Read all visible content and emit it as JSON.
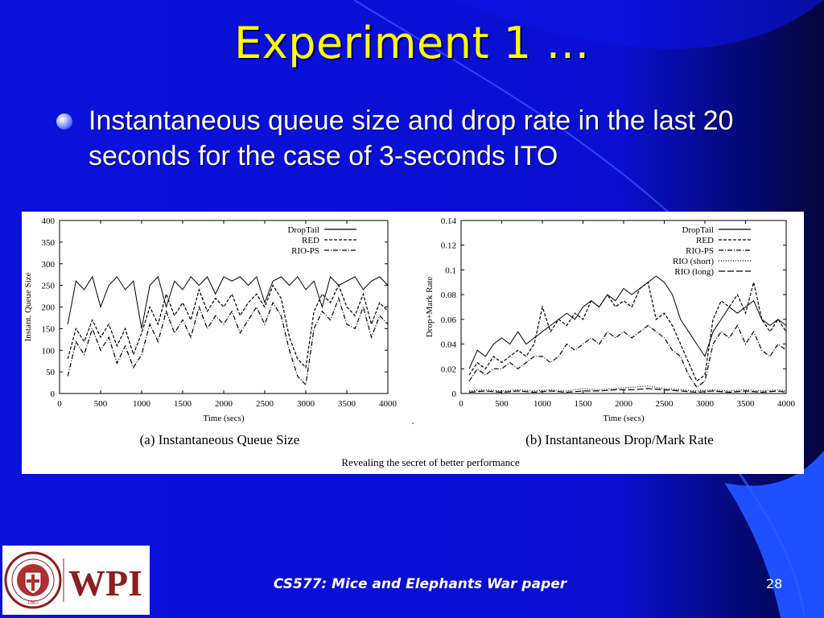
{
  "slide": {
    "title": "Experiment 1 …",
    "bullet": "Instantaneous queue size and drop rate in the last 20 seconds for the case of 3-seconds ITO",
    "footer": "CS577:  Mice and Elephants War paper",
    "page_number": "28",
    "colors": {
      "background": "#0a0fd8",
      "title": "#ffff00",
      "text": "#ffffff",
      "accent": "#1e50ff"
    },
    "logo": {
      "text": "WPI",
      "seal_text": "WORCESTER POLYTECHNIC INSTITUTE",
      "seal_year": "1865",
      "text_color": "#8b1f1f"
    }
  },
  "figure": {
    "caption": "Revealing the secret of better performance",
    "dot": "."
  },
  "chart_data": [
    {
      "type": "line",
      "subcaption": "(a) Instantaneous Queue Size",
      "xlabel": "Time (secs)",
      "ylabel": "Instant. Queue Size",
      "xlim": [
        0,
        4000
      ],
      "ylim": [
        0,
        400
      ],
      "xticks": [
        0,
        500,
        1000,
        1500,
        2000,
        2500,
        3000,
        3500,
        4000
      ],
      "yticks": [
        0,
        50,
        100,
        150,
        200,
        250,
        300,
        350,
        400
      ],
      "legend_position": "top-right",
      "grid": false,
      "series": [
        {
          "name": "DropTail",
          "style": "solid",
          "x": [
            100,
            200,
            300,
            400,
            500,
            600,
            700,
            800,
            900,
            1000,
            1100,
            1200,
            1300,
            1400,
            1500,
            1600,
            1700,
            1800,
            1900,
            2000,
            2100,
            2200,
            2300,
            2400,
            2500,
            2600,
            2700,
            2800,
            2900,
            3000,
            3100,
            3200,
            3300,
            3400,
            3500,
            3600,
            3700,
            3800,
            3900,
            4000
          ],
          "values": [
            160,
            260,
            240,
            270,
            200,
            250,
            270,
            240,
            260,
            150,
            250,
            270,
            200,
            260,
            240,
            270,
            250,
            270,
            230,
            270,
            260,
            270,
            250,
            270,
            210,
            260,
            270,
            250,
            270,
            240,
            260,
            200,
            270,
            250,
            260,
            270,
            240,
            260,
            270,
            250
          ]
        },
        {
          "name": "RED",
          "style": "dashed",
          "x": [
            100,
            200,
            300,
            400,
            500,
            600,
            700,
            800,
            900,
            1000,
            1100,
            1200,
            1300,
            1400,
            1500,
            1600,
            1700,
            1800,
            1900,
            2000,
            2100,
            2200,
            2300,
            2400,
            2500,
            2600,
            2700,
            2800,
            2900,
            3000,
            3100,
            3200,
            3300,
            3400,
            3500,
            3600,
            3700,
            3800,
            3900,
            4000
          ],
          "values": [
            80,
            150,
            120,
            170,
            130,
            160,
            110,
            150,
            90,
            140,
            200,
            160,
            230,
            180,
            210,
            170,
            240,
            190,
            220,
            200,
            230,
            180,
            210,
            230,
            200,
            250,
            220,
            130,
            80,
            60,
            190,
            230,
            210,
            250,
            200,
            180,
            230,
            160,
            210,
            190
          ]
        },
        {
          "name": "RIO-PS",
          "style": "dash-dot",
          "x": [
            100,
            200,
            300,
            400,
            500,
            600,
            700,
            800,
            900,
            1000,
            1100,
            1200,
            1300,
            1400,
            1500,
            1600,
            1700,
            1800,
            1900,
            2000,
            2100,
            2200,
            2300,
            2400,
            2500,
            2600,
            2700,
            2800,
            2900,
            3000,
            3100,
            3200,
            3300,
            3400,
            3500,
            3600,
            3700,
            3800,
            3900,
            4000
          ],
          "values": [
            40,
            120,
            90,
            150,
            100,
            130,
            70,
            110,
            60,
            90,
            160,
            120,
            190,
            140,
            170,
            130,
            200,
            150,
            180,
            160,
            190,
            140,
            170,
            200,
            160,
            210,
            180,
            100,
            40,
            20,
            150,
            190,
            170,
            220,
            160,
            150,
            200,
            130,
            180,
            160
          ]
        }
      ]
    },
    {
      "type": "line",
      "subcaption": "(b) Instantaneous Drop/Mark Rate",
      "xlabel": "Time (secs)",
      "ylabel": "Drop+Mark Rate",
      "xlim": [
        0,
        4000
      ],
      "ylim": [
        0,
        0.14
      ],
      "xticks": [
        0,
        500,
        1000,
        1500,
        2000,
        2500,
        3000,
        3500,
        4000
      ],
      "yticks": [
        0,
        0.02,
        0.04,
        0.06,
        0.08,
        0.1,
        0.12,
        0.14
      ],
      "legend_position": "top-right",
      "grid": false,
      "series": [
        {
          "name": "DropTail",
          "style": "solid",
          "x": [
            100,
            200,
            300,
            400,
            500,
            600,
            700,
            800,
            900,
            1000,
            1100,
            1200,
            1300,
            1400,
            1500,
            1600,
            1700,
            1800,
            1900,
            2000,
            2100,
            2200,
            2300,
            2400,
            2500,
            2600,
            2700,
            2800,
            2900,
            3000,
            3100,
            3200,
            3300,
            3400,
            3500,
            3600,
            3700,
            3800,
            3900,
            4000
          ],
          "values": [
            0.02,
            0.035,
            0.03,
            0.04,
            0.045,
            0.04,
            0.05,
            0.04,
            0.045,
            0.05,
            0.055,
            0.06,
            0.065,
            0.06,
            0.07,
            0.075,
            0.07,
            0.08,
            0.075,
            0.085,
            0.08,
            0.085,
            0.09,
            0.095,
            0.09,
            0.08,
            0.06,
            0.05,
            0.04,
            0.03,
            0.05,
            0.06,
            0.07,
            0.065,
            0.07,
            0.075,
            0.06,
            0.055,
            0.06,
            0.055
          ]
        },
        {
          "name": "RED",
          "style": "dashed",
          "x": [
            100,
            200,
            300,
            400,
            500,
            600,
            700,
            800,
            900,
            1000,
            1100,
            1200,
            1300,
            1400,
            1500,
            1600,
            1700,
            1800,
            1900,
            2000,
            2100,
            2200,
            2300,
            2400,
            2500,
            2600,
            2700,
            2800,
            2900,
            3000,
            3100,
            3200,
            3300,
            3400,
            3500,
            3600,
            3700,
            3800,
            3900,
            4000
          ],
          "values": [
            0.015,
            0.025,
            0.02,
            0.03,
            0.025,
            0.03,
            0.035,
            0.03,
            0.04,
            0.07,
            0.05,
            0.06,
            0.055,
            0.065,
            0.06,
            0.075,
            0.07,
            0.08,
            0.07,
            0.075,
            0.07,
            0.085,
            0.09,
            0.06,
            0.065,
            0.055,
            0.04,
            0.025,
            0.01,
            0.015,
            0.06,
            0.075,
            0.07,
            0.08,
            0.065,
            0.09,
            0.06,
            0.05,
            0.06,
            0.05
          ]
        },
        {
          "name": "RIO-PS",
          "style": "dash-dot",
          "x": [
            100,
            200,
            300,
            400,
            500,
            600,
            700,
            800,
            900,
            1000,
            1100,
            1200,
            1300,
            1400,
            1500,
            1600,
            1700,
            1800,
            1900,
            2000,
            2100,
            2200,
            2300,
            2400,
            2500,
            2600,
            2700,
            2800,
            2900,
            3000,
            3100,
            3200,
            3300,
            3400,
            3500,
            3600,
            3700,
            3800,
            3900,
            4000
          ],
          "values": [
            0.01,
            0.02,
            0.015,
            0.02,
            0.02,
            0.025,
            0.02,
            0.025,
            0.03,
            0.03,
            0.025,
            0.03,
            0.04,
            0.035,
            0.04,
            0.045,
            0.04,
            0.05,
            0.045,
            0.05,
            0.045,
            0.05,
            0.055,
            0.05,
            0.045,
            0.035,
            0.03,
            0.015,
            0.005,
            0.01,
            0.04,
            0.05,
            0.045,
            0.055,
            0.04,
            0.05,
            0.035,
            0.03,
            0.04,
            0.035
          ]
        },
        {
          "name": "RIO (short)",
          "style": "dotted",
          "x": [
            100,
            300,
            500,
            700,
            900,
            1100,
            1300,
            1500,
            1700,
            1900,
            2100,
            2300,
            2500,
            2700,
            2900,
            3100,
            3300,
            3500,
            3700,
            3900,
            4000
          ],
          "values": [
            0.002,
            0.003,
            0.002,
            0.003,
            0.002,
            0.003,
            0.002,
            0.004,
            0.003,
            0.004,
            0.005,
            0.006,
            0.004,
            0.003,
            0.002,
            0.003,
            0.002,
            0.003,
            0.002,
            0.003,
            0.002
          ]
        },
        {
          "name": "RIO (long)",
          "style": "dash-long",
          "x": [
            100,
            300,
            500,
            700,
            900,
            1100,
            1300,
            1500,
            1700,
            1900,
            2100,
            2300,
            2500,
            2700,
            2900,
            3100,
            3300,
            3500,
            3700,
            3900,
            4000
          ],
          "values": [
            0.001,
            0.002,
            0.001,
            0.002,
            0.001,
            0.002,
            0.001,
            0.002,
            0.002,
            0.003,
            0.003,
            0.004,
            0.003,
            0.002,
            0.001,
            0.002,
            0.001,
            0.002,
            0.001,
            0.002,
            0.001
          ]
        }
      ]
    }
  ]
}
